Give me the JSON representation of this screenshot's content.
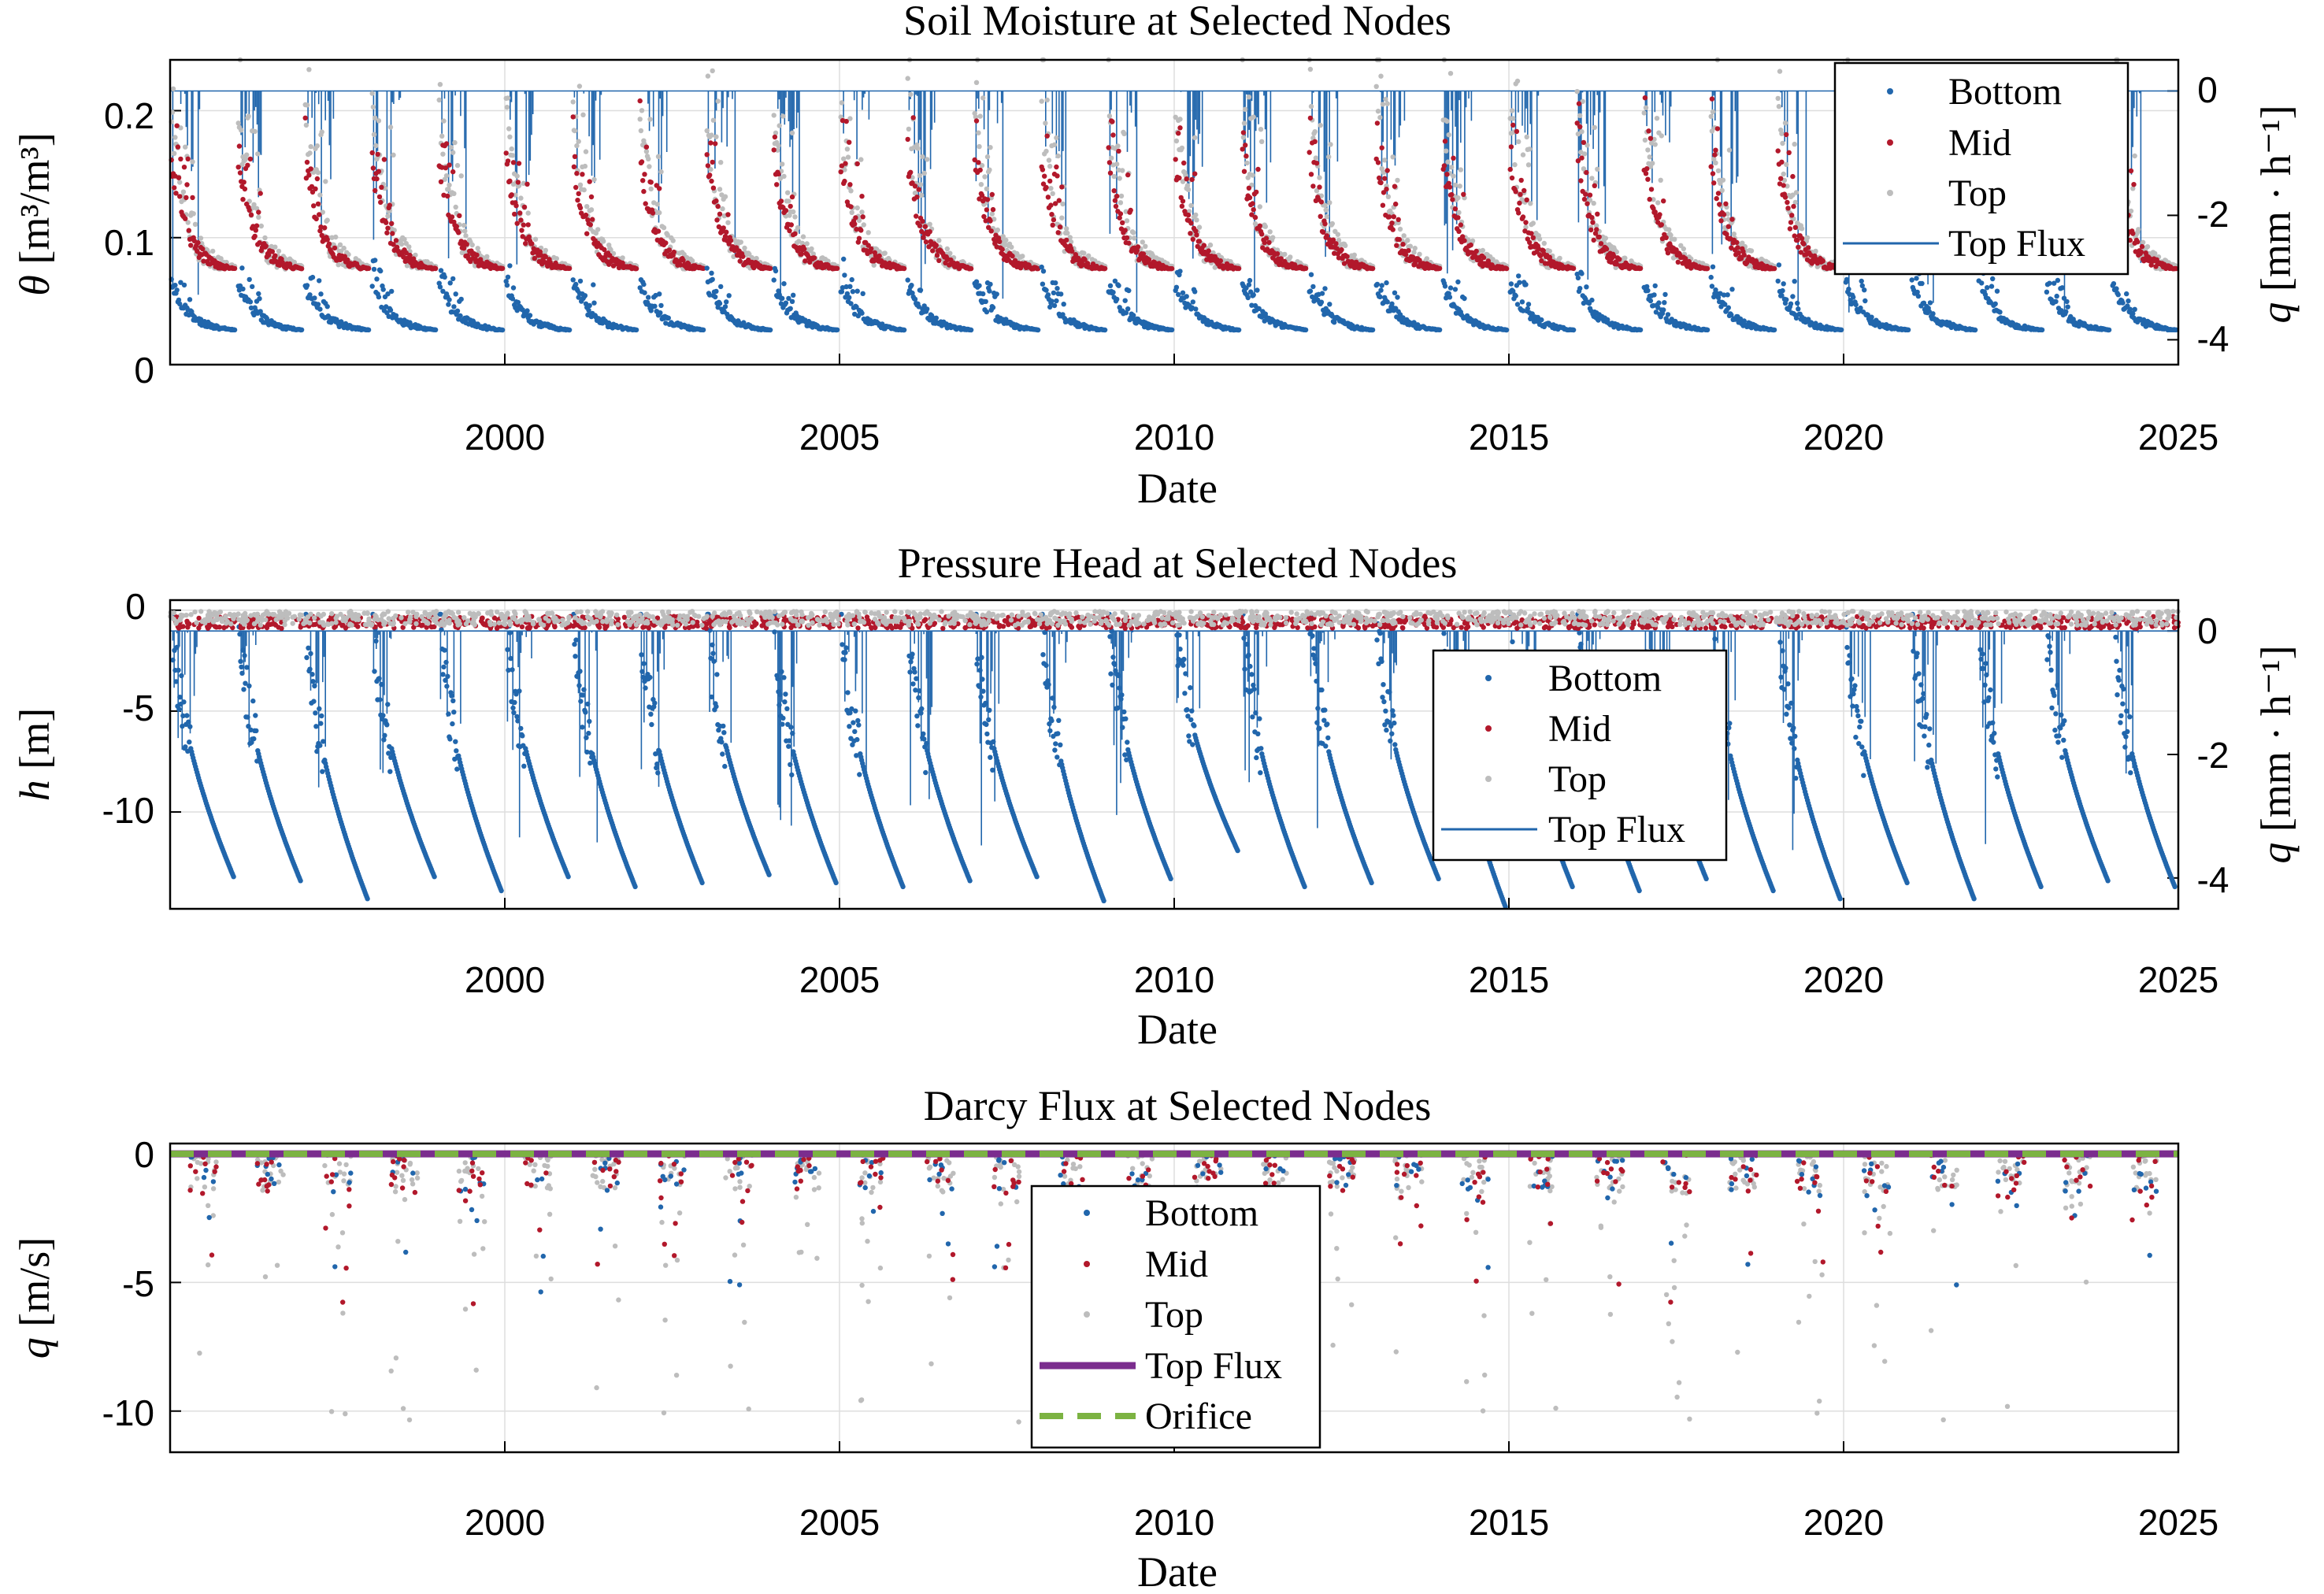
{
  "figure": {
    "colors": {
      "bottom": "#2166ac",
      "mid": "#b2182b",
      "top": "#bdbdbd",
      "top_flux_line": "#2166ac",
      "top_flux_thick": "#7b2d8e",
      "orifice": "#7cb342",
      "grid": "#dedede",
      "axis": "#000000"
    }
  },
  "chart_data": [
    {
      "id": "moisture",
      "type": "scatter",
      "title": "Soil Moisture at Selected Nodes",
      "xlabel": "Date",
      "ylabel_sym": "θ",
      "ylabel_unit": " [m³/m³]",
      "y2label_sym": "q",
      "y2label_unit": " [mm · h⁻¹]",
      "xlim": [
        1995,
        2025
      ],
      "x_ticks": [
        "2000",
        "2005",
        "2010",
        "2015",
        "2020",
        "2025"
      ],
      "ylim": [
        0,
        0.24
      ],
      "y_ticks": [
        "0",
        "0.1",
        "0.2"
      ],
      "y2lim": [
        -4.4,
        0.5
      ],
      "y2_ticks": [
        "0",
        "-2",
        "-4"
      ],
      "grid": true,
      "legend_position": "top-right",
      "legend": [
        "Bottom",
        "Mid",
        "Top",
        "Top Flux"
      ],
      "series": [
        {
          "name": "Bottom",
          "marker": "dot",
          "baseline": 0.026,
          "peak": 0.062
        },
        {
          "name": "Mid",
          "marker": "dot",
          "baseline": 0.074,
          "peak": 0.16
        },
        {
          "name": "Top",
          "marker": "dot",
          "baseline": 0.076,
          "peak": 0.2
        },
        {
          "name": "Top Flux",
          "marker": "line",
          "axis": "right",
          "baseline": 0.0,
          "min": -4.0
        }
      ]
    },
    {
      "id": "pressure",
      "type": "scatter",
      "title": "Pressure Head at Selected Nodes",
      "xlabel": "Date",
      "ylabel_sym": "h",
      "ylabel_unit": " [m]",
      "y2label_sym": "q",
      "y2label_unit": " [mm · h⁻¹]",
      "xlim": [
        1995,
        2025
      ],
      "x_ticks": [
        "2000",
        "2005",
        "2010",
        "2015",
        "2020",
        "2025"
      ],
      "ylim": [
        -14.8,
        0.5
      ],
      "y_ticks": [
        "0",
        "-5",
        "-10"
      ],
      "y2lim": [
        -4.5,
        0.5
      ],
      "y2_ticks": [
        "0",
        "-2",
        "-4"
      ],
      "grid": true,
      "legend_position": "center-right",
      "legend": [
        "Bottom",
        "Mid",
        "Top",
        "Top Flux"
      ],
      "series": [
        {
          "name": "Bottom",
          "marker": "dot",
          "min_by_year": [
            -13.3,
            -13.5,
            -14.4,
            -13.3,
            -14,
            -13.3,
            -13.8,
            -13.6,
            -13.2,
            -13.6,
            -13.8,
            -13.5,
            -13.3,
            -14.5,
            -13.4,
            -12,
            -13.8,
            -13.6,
            -13.4,
            -14.8,
            -13.8,
            -14,
            -13.4,
            -14,
            -14.4,
            -13.6,
            -14.4,
            -13.8,
            -13.5,
            -13.8
          ]
        },
        {
          "name": "Mid",
          "marker": "dot",
          "baseline": -0.6
        },
        {
          "name": "Top",
          "marker": "dot",
          "baseline": -0.4
        },
        {
          "name": "Top Flux",
          "marker": "line",
          "axis": "right",
          "baseline": 0.0,
          "min": -4.0
        }
      ]
    },
    {
      "id": "darcy",
      "type": "scatter",
      "title": "Darcy Flux at Selected Nodes",
      "xlabel": "Date",
      "ylabel_sym": "q",
      "ylabel_unit": " [m/s]",
      "xlim": [
        1995,
        2025
      ],
      "x_ticks": [
        "2000",
        "2005",
        "2010",
        "2015",
        "2020",
        "2025"
      ],
      "ylim": [
        -11.6,
        0.4
      ],
      "y_ticks": [
        "0",
        "-5",
        "-10"
      ],
      "grid": true,
      "legend_position": "bottom-center",
      "legend": [
        "Bottom",
        "Mid",
        "Top",
        "Top Flux",
        "Orifice"
      ],
      "series": [
        {
          "name": "Bottom",
          "marker": "dot",
          "min": -5.9
        },
        {
          "name": "Mid",
          "marker": "dot",
          "min": -5.9
        },
        {
          "name": "Top",
          "marker": "dot",
          "min": -10.6
        },
        {
          "name": "Top Flux",
          "marker": "thick-line",
          "value": 0
        },
        {
          "name": "Orifice",
          "marker": "dashed-line",
          "value": 0
        }
      ]
    }
  ]
}
